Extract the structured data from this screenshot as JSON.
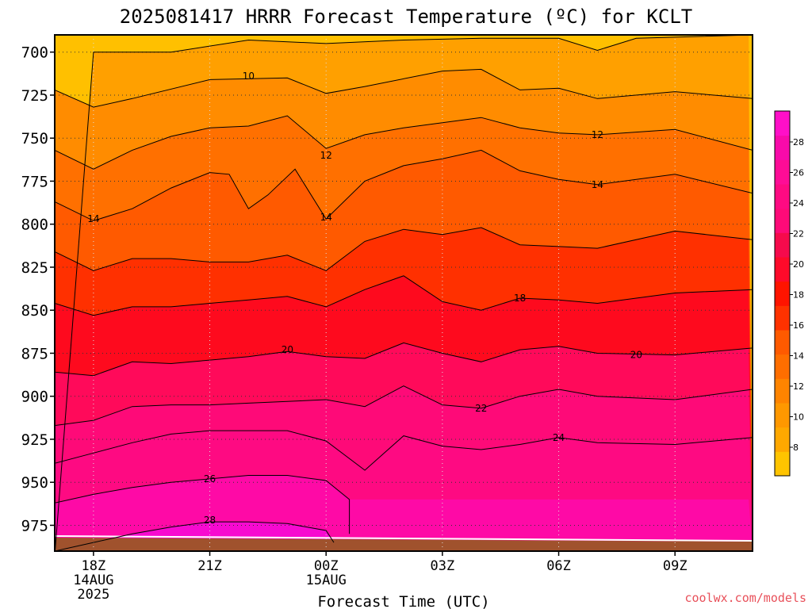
{
  "title": "2025081417 HRRR Forecast Temperature (ºC) for KCLT",
  "credit": "coolwx.com/models",
  "chart_data": {
    "type": "heatmap",
    "title": "2025081417 HRRR Forecast Temperature (ºC) for KCLT",
    "xlabel": "Forecast Time (UTC)",
    "ylabel": "",
    "y_reversed": true,
    "ylim": [
      990,
      690
    ],
    "xlim": [
      17,
      35
    ],
    "y_ticks": [
      700,
      725,
      750,
      775,
      800,
      825,
      850,
      875,
      900,
      925,
      950,
      975
    ],
    "x_ticks": [
      {
        "value": 18,
        "label": "18Z",
        "sub": [
          "14AUG",
          "2025"
        ]
      },
      {
        "value": 21,
        "label": "21Z",
        "sub": []
      },
      {
        "value": 24,
        "label": "00Z",
        "sub": [
          "15AUG"
        ]
      },
      {
        "value": 27,
        "label": "03Z",
        "sub": []
      },
      {
        "value": 30,
        "label": "06Z",
        "sub": []
      },
      {
        "value": 33,
        "label": "09Z",
        "sub": []
      }
    ],
    "grid": true,
    "colorbar": {
      "ticks": [
        8,
        10,
        12,
        14,
        16,
        18,
        20,
        22,
        24,
        26,
        28
      ],
      "colors": [
        "#ffc400",
        "#ffa800",
        "#ff9800",
        "#ff8400",
        "#ff6e00",
        "#ff5a00",
        "#ff3200",
        "#ff1400",
        "#fe0a2a",
        "#f60a4c",
        "#fe0a78",
        "#fe0a82",
        "#fe0c96",
        "#f80aaa",
        "#ff0fc8"
      ]
    },
    "contours": [
      {
        "level": 8,
        "label": "",
        "points": [
          [
            17,
            993
          ],
          [
            18,
            700
          ],
          [
            20,
            700
          ],
          [
            22,
            693
          ],
          [
            24,
            695
          ],
          [
            26,
            693
          ],
          [
            28,
            692
          ],
          [
            30,
            692
          ],
          [
            31,
            699
          ],
          [
            32,
            692
          ],
          [
            35,
            690
          ]
        ]
      },
      {
        "level": 10,
        "label": "10",
        "label_at": [
          22,
          714
        ],
        "points": [
          [
            17,
            722
          ],
          [
            18,
            732
          ],
          [
            19,
            727
          ],
          [
            21,
            716
          ],
          [
            23,
            715
          ],
          [
            24,
            724
          ],
          [
            25,
            720
          ],
          [
            27,
            711
          ],
          [
            28,
            710
          ],
          [
            29,
            722
          ],
          [
            30,
            721
          ],
          [
            31,
            727
          ],
          [
            33,
            723
          ],
          [
            35,
            727
          ]
        ]
      },
      {
        "level": 12,
        "label": "12",
        "label_at": [
          24,
          760
        ],
        "second_label": "12",
        "second_at": [
          31,
          748
        ],
        "points": [
          [
            17,
            757
          ],
          [
            18,
            768
          ],
          [
            19,
            757
          ],
          [
            20,
            749
          ],
          [
            21,
            744
          ],
          [
            22,
            743
          ],
          [
            23,
            737
          ],
          [
            24,
            756
          ],
          [
            25,
            748
          ],
          [
            26,
            744
          ],
          [
            27,
            741
          ],
          [
            28,
            738
          ],
          [
            29,
            744
          ],
          [
            30,
            747
          ],
          [
            31,
            748
          ],
          [
            33,
            745
          ],
          [
            35,
            757
          ]
        ]
      },
      {
        "level": 14,
        "label": "14",
        "label_at": [
          18,
          797
        ],
        "second_label": "14",
        "second_at": [
          24,
          796
        ],
        "third_label": "14",
        "third_at": [
          31,
          777
        ],
        "points": [
          [
            17,
            787
          ],
          [
            18,
            798
          ],
          [
            19,
            791
          ],
          [
            20,
            779
          ],
          [
            21,
            770
          ],
          [
            21.5,
            771
          ],
          [
            22,
            791
          ],
          [
            22.5,
            783
          ],
          [
            23.2,
            768
          ],
          [
            24,
            797
          ],
          [
            25,
            775
          ],
          [
            26,
            766
          ],
          [
            27,
            762
          ],
          [
            28,
            757
          ],
          [
            29,
            769
          ],
          [
            30,
            774
          ],
          [
            31,
            777
          ],
          [
            33,
            771
          ],
          [
            35,
            782
          ]
        ]
      },
      {
        "level": 16,
        "label": "",
        "points": [
          [
            17,
            816
          ],
          [
            18,
            827
          ],
          [
            19,
            820
          ],
          [
            20,
            820
          ],
          [
            21,
            822
          ],
          [
            22,
            822
          ],
          [
            23,
            818
          ],
          [
            24,
            827
          ],
          [
            25,
            810
          ],
          [
            26,
            803
          ],
          [
            27,
            806
          ],
          [
            28,
            802
          ],
          [
            29,
            812
          ],
          [
            30,
            813
          ],
          [
            31,
            814
          ],
          [
            33,
            804
          ],
          [
            35,
            809
          ]
        ]
      },
      {
        "level": 18,
        "label": "18",
        "label_at": [
          29,
          843
        ],
        "points": [
          [
            17,
            846
          ],
          [
            18,
            853
          ],
          [
            19,
            848
          ],
          [
            20,
            848
          ],
          [
            21,
            846
          ],
          [
            22,
            844
          ],
          [
            23,
            842
          ],
          [
            24,
            848
          ],
          [
            25,
            838
          ],
          [
            26,
            830
          ],
          [
            27,
            845
          ],
          [
            28,
            850
          ],
          [
            29,
            843
          ],
          [
            30,
            844
          ],
          [
            31,
            846
          ],
          [
            33,
            840
          ],
          [
            35,
            838
          ]
        ]
      },
      {
        "level": 20,
        "label": "20",
        "label_at": [
          23,
          873
        ],
        "second_label": "20",
        "second_at": [
          32,
          876
        ],
        "points": [
          [
            17,
            886
          ],
          [
            18,
            888
          ],
          [
            19,
            880
          ],
          [
            20,
            881
          ],
          [
            21,
            879
          ],
          [
            22,
            877
          ],
          [
            23,
            874
          ],
          [
            24,
            877
          ],
          [
            25,
            878
          ],
          [
            26,
            869
          ],
          [
            27,
            875
          ],
          [
            28,
            880
          ],
          [
            29,
            873
          ],
          [
            30,
            871
          ],
          [
            31,
            875
          ],
          [
            33,
            876
          ],
          [
            35,
            872
          ]
        ]
      },
      {
        "level": 22,
        "label": "22",
        "label_at": [
          28,
          907
        ],
        "points": [
          [
            17,
            917
          ],
          [
            18,
            914
          ],
          [
            19,
            906
          ],
          [
            20,
            905
          ],
          [
            21,
            905
          ],
          [
            22,
            904
          ],
          [
            23,
            903
          ],
          [
            24,
            902
          ],
          [
            25,
            906
          ],
          [
            26,
            894
          ],
          [
            27,
            905
          ],
          [
            28,
            907
          ],
          [
            29,
            900
          ],
          [
            30,
            896
          ],
          [
            31,
            900
          ],
          [
            33,
            902
          ],
          [
            35,
            896
          ]
        ]
      },
      {
        "level": 24,
        "label": "24",
        "label_at": [
          30,
          924
        ],
        "points": [
          [
            17,
            939
          ],
          [
            18,
            933
          ],
          [
            19,
            927
          ],
          [
            20,
            922
          ],
          [
            21,
            920
          ],
          [
            22,
            920
          ],
          [
            23,
            920
          ],
          [
            24,
            926
          ],
          [
            25,
            943
          ],
          [
            26,
            923
          ],
          [
            27,
            929
          ],
          [
            28,
            931
          ],
          [
            29,
            928
          ],
          [
            30,
            924
          ],
          [
            31,
            927
          ],
          [
            33,
            928
          ],
          [
            35,
            924
          ]
        ]
      },
      {
        "level": 26,
        "label": "26",
        "label_at": [
          21,
          948
        ],
        "points": [
          [
            17,
            962
          ],
          [
            18,
            957
          ],
          [
            19,
            953
          ],
          [
            20,
            950
          ],
          [
            21,
            948
          ],
          [
            22,
            946
          ],
          [
            23,
            946
          ],
          [
            24,
            949
          ],
          [
            24.6,
            960
          ],
          [
            24.6,
            980
          ]
        ]
      },
      {
        "level": 28,
        "label": "28",
        "label_at": [
          21,
          972
        ],
        "points": [
          [
            17,
            990
          ],
          [
            18,
            985
          ],
          [
            19,
            980
          ],
          [
            20,
            976
          ],
          [
            21,
            973
          ],
          [
            22,
            973
          ],
          [
            23,
            974
          ],
          [
            24,
            978
          ],
          [
            24.2,
            985
          ]
        ]
      }
    ]
  }
}
